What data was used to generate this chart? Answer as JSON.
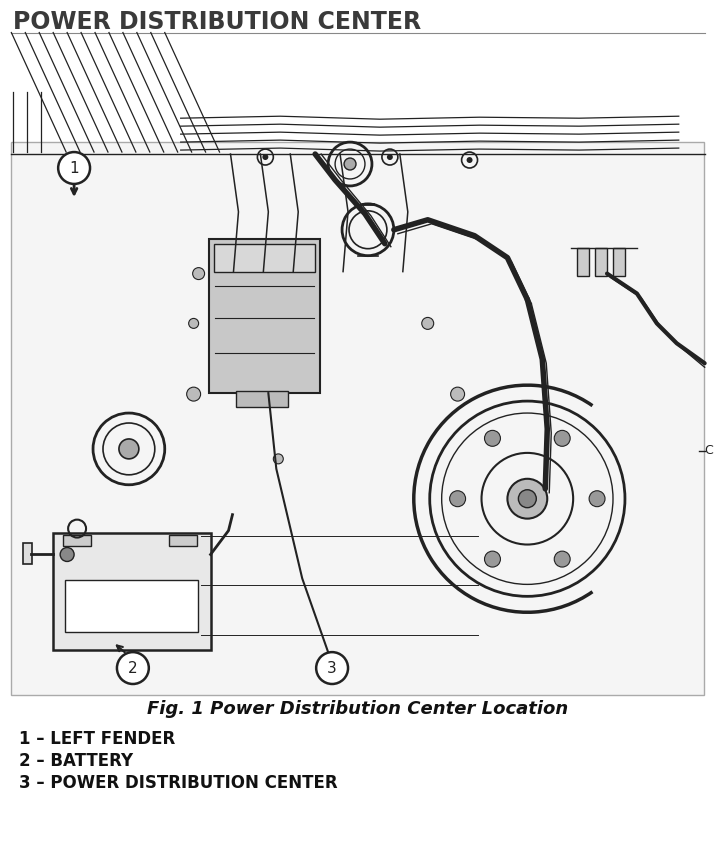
{
  "title": "POWER DISTRIBUTION CENTER",
  "title_fontsize": 17,
  "title_color": "#3a3a3a",
  "fig_caption": "Fig. 1 Power Distribution Center Location",
  "caption_fontsize": 13,
  "legend_items": [
    "1 – LEFT FENDER",
    "2 – BATTERY",
    "3 – POWER DISTRIBUTION CENTER"
  ],
  "legend_fontsize": 12,
  "background_color": "#ffffff",
  "line_color": "#222222",
  "diagram_bg": "#f5f5f5",
  "pdc_fill": "#c8c8c8",
  "bat_fill": "#e8e8e8"
}
